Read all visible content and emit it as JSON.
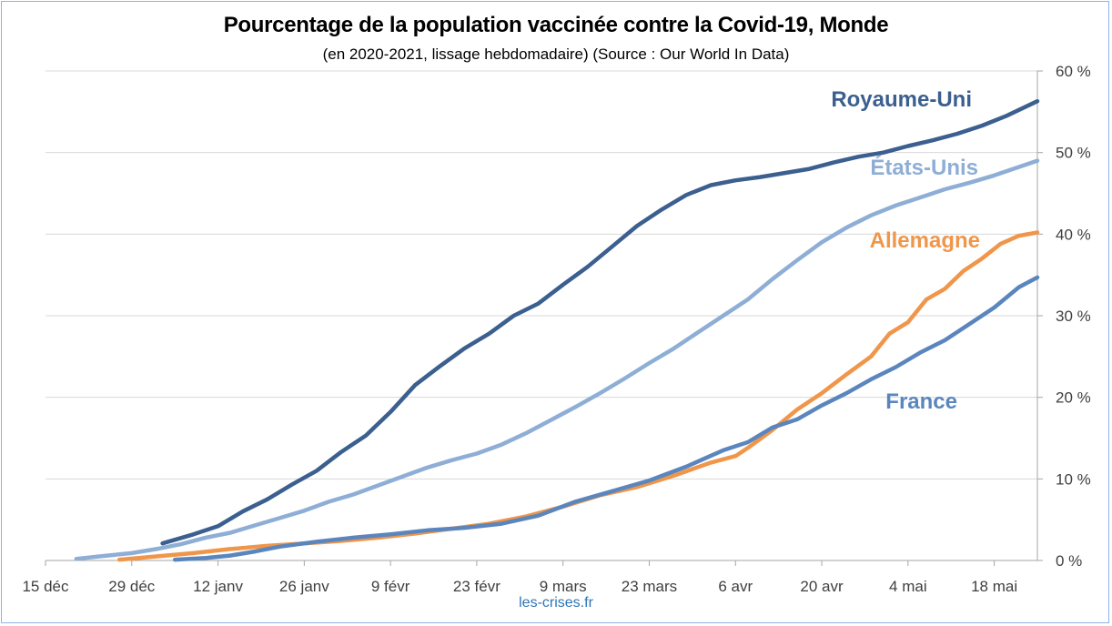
{
  "chart_data": {
    "type": "line",
    "title": "Pourcentage de la population vaccinée contre la Covid-19, Monde",
    "subtitle": "(en 2020-2021, lissage hebdomadaire) (Source : Our World In Data)",
    "source_credit": "les-crises.fr",
    "xlabel": "",
    "ylabel": "",
    "x_axis": {
      "type": "date",
      "range": [
        "2020-12-15",
        "2021-05-25"
      ],
      "tick_dates": [
        "2020-12-15",
        "2020-12-29",
        "2021-01-12",
        "2021-01-26",
        "2021-02-09",
        "2021-02-23",
        "2021-03-09",
        "2021-03-23",
        "2021-04-06",
        "2021-04-20",
        "2021-05-04",
        "2021-05-18"
      ],
      "tick_labels": [
        "15 déc",
        "29 déc",
        "12 janv",
        "26 janv",
        "9 févr",
        "23 févr",
        "9 mars",
        "23 mars",
        "6 avr",
        "20 avr",
        "4 mai",
        "18 mai"
      ]
    },
    "y_axis": {
      "position": "right",
      "range": [
        0,
        60
      ],
      "ticks": [
        0,
        10,
        20,
        30,
        40,
        50,
        60
      ],
      "tick_labels": [
        "0 %",
        "10 %",
        "20 %",
        "30 %",
        "40 %",
        "50 %",
        "60 %"
      ],
      "unit": "%"
    },
    "grid": {
      "horizontal": true,
      "vertical": false
    },
    "series": [
      {
        "name": "Royaume-Uni",
        "color": "#3b5f8f",
        "points": [
          [
            "2021-01-03",
            2.1
          ],
          [
            "2021-01-08",
            3.2
          ],
          [
            "2021-01-12",
            4.2
          ],
          [
            "2021-01-16",
            6.0
          ],
          [
            "2021-01-20",
            7.5
          ],
          [
            "2021-01-24",
            9.3
          ],
          [
            "2021-01-28",
            11.0
          ],
          [
            "2021-02-01",
            13.3
          ],
          [
            "2021-02-05",
            15.3
          ],
          [
            "2021-02-09",
            18.2
          ],
          [
            "2021-02-13",
            21.5
          ],
          [
            "2021-02-17",
            23.8
          ],
          [
            "2021-02-21",
            26.0
          ],
          [
            "2021-02-25",
            27.8
          ],
          [
            "2021-03-01",
            30.0
          ],
          [
            "2021-03-05",
            31.5
          ],
          [
            "2021-03-09",
            33.8
          ],
          [
            "2021-03-13",
            36.0
          ],
          [
            "2021-03-17",
            38.5
          ],
          [
            "2021-03-21",
            41.0
          ],
          [
            "2021-03-25",
            43.0
          ],
          [
            "2021-03-29",
            44.8
          ],
          [
            "2021-04-02",
            46.0
          ],
          [
            "2021-04-06",
            46.6
          ],
          [
            "2021-04-10",
            47.0
          ],
          [
            "2021-04-14",
            47.5
          ],
          [
            "2021-04-18",
            48.0
          ],
          [
            "2021-04-22",
            48.8
          ],
          [
            "2021-04-26",
            49.5
          ],
          [
            "2021-04-30",
            50.0
          ],
          [
            "2021-05-04",
            50.8
          ],
          [
            "2021-05-08",
            51.5
          ],
          [
            "2021-05-12",
            52.3
          ],
          [
            "2021-05-16",
            53.3
          ],
          [
            "2021-05-20",
            54.5
          ],
          [
            "2021-05-25",
            56.3
          ]
        ]
      },
      {
        "name": "États-Unis",
        "color": "#8eaed6",
        "points": [
          [
            "2020-12-20",
            0.2
          ],
          [
            "2020-12-25",
            0.6
          ],
          [
            "2020-12-29",
            0.9
          ],
          [
            "2021-01-02",
            1.4
          ],
          [
            "2021-01-06",
            2.0
          ],
          [
            "2021-01-10",
            2.8
          ],
          [
            "2021-01-14",
            3.4
          ],
          [
            "2021-01-18",
            4.3
          ],
          [
            "2021-01-22",
            5.2
          ],
          [
            "2021-01-26",
            6.1
          ],
          [
            "2021-01-30",
            7.2
          ],
          [
            "2021-02-03",
            8.1
          ],
          [
            "2021-02-07",
            9.2
          ],
          [
            "2021-02-11",
            10.3
          ],
          [
            "2021-02-15",
            11.4
          ],
          [
            "2021-02-19",
            12.3
          ],
          [
            "2021-02-23",
            13.1
          ],
          [
            "2021-02-27",
            14.2
          ],
          [
            "2021-03-03",
            15.6
          ],
          [
            "2021-03-07",
            17.2
          ],
          [
            "2021-03-11",
            18.8
          ],
          [
            "2021-03-15",
            20.5
          ],
          [
            "2021-03-19",
            22.3
          ],
          [
            "2021-03-23",
            24.2
          ],
          [
            "2021-03-27",
            26.0
          ],
          [
            "2021-03-31",
            28.0
          ],
          [
            "2021-04-04",
            30.0
          ],
          [
            "2021-04-08",
            32.0
          ],
          [
            "2021-04-12",
            34.5
          ],
          [
            "2021-04-16",
            36.8
          ],
          [
            "2021-04-20",
            39.0
          ],
          [
            "2021-04-24",
            40.8
          ],
          [
            "2021-04-28",
            42.3
          ],
          [
            "2021-05-02",
            43.5
          ],
          [
            "2021-05-06",
            44.5
          ],
          [
            "2021-05-10",
            45.5
          ],
          [
            "2021-05-14",
            46.3
          ],
          [
            "2021-05-18",
            47.2
          ],
          [
            "2021-05-25",
            49.0
          ]
        ]
      },
      {
        "name": "Allemagne",
        "color": "#f0964a",
        "points": [
          [
            "2020-12-27",
            0.1
          ],
          [
            "2021-01-02",
            0.5
          ],
          [
            "2021-01-08",
            0.9
          ],
          [
            "2021-01-14",
            1.4
          ],
          [
            "2021-01-20",
            1.8
          ],
          [
            "2021-01-26",
            2.1
          ],
          [
            "2021-02-01",
            2.4
          ],
          [
            "2021-02-07",
            2.8
          ],
          [
            "2021-02-13",
            3.3
          ],
          [
            "2021-02-19",
            3.9
          ],
          [
            "2021-02-25",
            4.5
          ],
          [
            "2021-03-03",
            5.4
          ],
          [
            "2021-03-09",
            6.6
          ],
          [
            "2021-03-15",
            8.0
          ],
          [
            "2021-03-21",
            9.0
          ],
          [
            "2021-03-27",
            10.4
          ],
          [
            "2021-04-02",
            12.0
          ],
          [
            "2021-04-06",
            12.8
          ],
          [
            "2021-04-08",
            13.8
          ],
          [
            "2021-04-12",
            16.0
          ],
          [
            "2021-04-16",
            18.5
          ],
          [
            "2021-04-20",
            20.5
          ],
          [
            "2021-04-24",
            22.8
          ],
          [
            "2021-04-28",
            25.0
          ],
          [
            "2021-05-01",
            27.8
          ],
          [
            "2021-05-04",
            29.2
          ],
          [
            "2021-05-07",
            32.0
          ],
          [
            "2021-05-10",
            33.3
          ],
          [
            "2021-05-13",
            35.5
          ],
          [
            "2021-05-16",
            37.0
          ],
          [
            "2021-05-19",
            38.8
          ],
          [
            "2021-05-22",
            39.8
          ],
          [
            "2021-05-25",
            40.2
          ]
        ]
      },
      {
        "name": "France",
        "color": "#5b86bd",
        "points": [
          [
            "2021-01-05",
            0.1
          ],
          [
            "2021-01-10",
            0.3
          ],
          [
            "2021-01-14",
            0.6
          ],
          [
            "2021-01-18",
            1.1
          ],
          [
            "2021-01-22",
            1.7
          ],
          [
            "2021-01-28",
            2.3
          ],
          [
            "2021-02-03",
            2.8
          ],
          [
            "2021-02-09",
            3.2
          ],
          [
            "2021-02-15",
            3.7
          ],
          [
            "2021-02-21",
            4.0
          ],
          [
            "2021-02-27",
            4.5
          ],
          [
            "2021-03-05",
            5.5
          ],
          [
            "2021-03-11",
            7.2
          ],
          [
            "2021-03-17",
            8.5
          ],
          [
            "2021-03-23",
            9.8
          ],
          [
            "2021-03-29",
            11.5
          ],
          [
            "2021-04-04",
            13.5
          ],
          [
            "2021-04-08",
            14.5
          ],
          [
            "2021-04-12",
            16.3
          ],
          [
            "2021-04-16",
            17.3
          ],
          [
            "2021-04-20",
            19.0
          ],
          [
            "2021-04-24",
            20.5
          ],
          [
            "2021-04-28",
            22.2
          ],
          [
            "2021-05-02",
            23.7
          ],
          [
            "2021-05-06",
            25.5
          ],
          [
            "2021-05-10",
            27.0
          ],
          [
            "2021-05-14",
            29.0
          ],
          [
            "2021-05-18",
            31.0
          ],
          [
            "2021-05-22",
            33.5
          ],
          [
            "2021-05-25",
            34.7
          ]
        ]
      }
    ]
  }
}
